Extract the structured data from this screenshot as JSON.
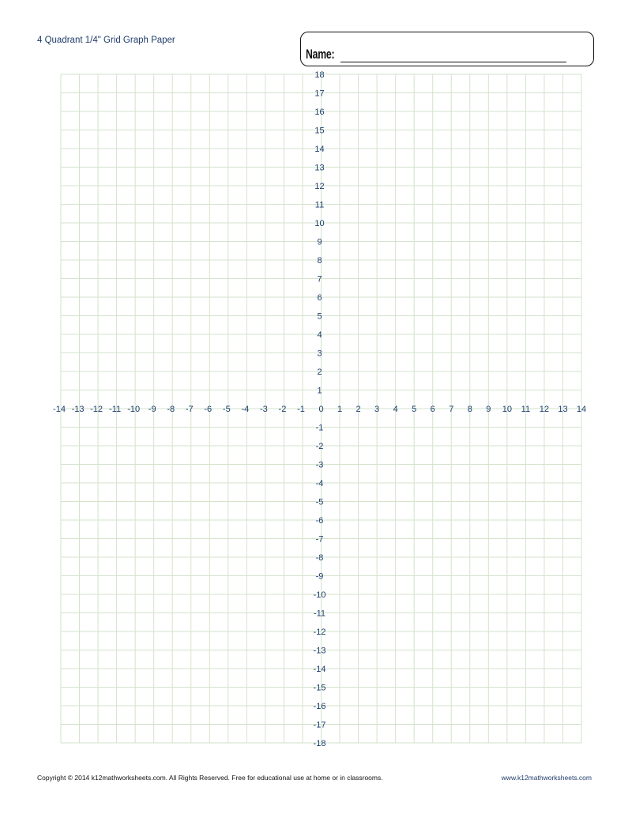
{
  "header": {
    "title": "4 Quadrant 1/4\" Grid Graph Paper",
    "name_label": "Name:"
  },
  "graph": {
    "x_range": [
      -14,
      14
    ],
    "y_range": [
      -18,
      18
    ],
    "x_ticks": [
      "-14",
      "-13",
      "-12",
      "-11",
      "-10",
      "-9",
      "-8",
      "-7",
      "-6",
      "-5",
      "-4",
      "-3",
      "-2",
      "-1",
      "0",
      "1",
      "2",
      "3",
      "4",
      "5",
      "6",
      "7",
      "8",
      "9",
      "10",
      "11",
      "12",
      "13",
      "14"
    ],
    "y_ticks": [
      "18",
      "17",
      "16",
      "15",
      "14",
      "13",
      "12",
      "11",
      "10",
      "9",
      "8",
      "7",
      "6",
      "5",
      "4",
      "3",
      "2",
      "1",
      "-1",
      "-2",
      "-3",
      "-4",
      "-5",
      "-6",
      "-7",
      "-8",
      "-9",
      "-10",
      "-11",
      "-12",
      "-13",
      "-14",
      "-15",
      "-16",
      "-17",
      "-18"
    ],
    "grid_color": "#d3e3cc",
    "label_color": "#1c3e6e"
  },
  "footer": {
    "copyright": "Copyright © 2014  k12mathworksheets.com. All Rights Reserved. Free for educational use at home or in classrooms.",
    "website": "www.k12mathworksheets.com"
  }
}
